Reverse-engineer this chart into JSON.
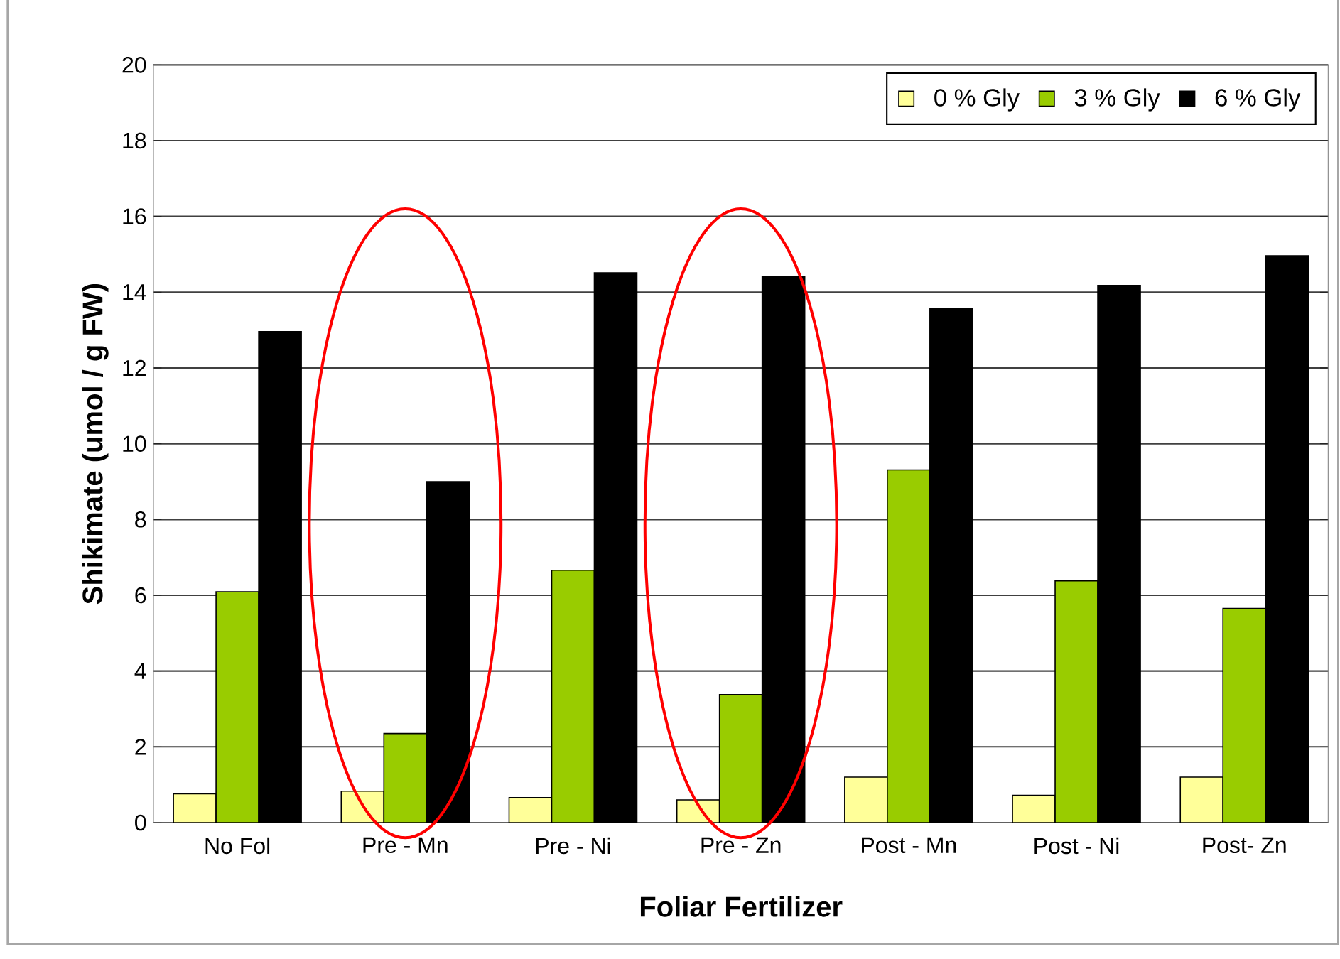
{
  "chart_data": {
    "type": "bar",
    "xlabel": "Foliar Fertilizer",
    "ylabel": "Shikimate (umol / g FW)",
    "categories": [
      "No Fol",
      "Pre - Mn",
      "Pre - Ni",
      "Pre - Zn",
      "Post - Mn",
      "Post - Ni",
      "Post- Zn"
    ],
    "series": [
      {
        "name": "0 % Gly",
        "color": "#ffff99",
        "values": [
          0.76,
          0.83,
          0.66,
          0.6,
          1.2,
          0.72,
          1.2
        ]
      },
      {
        "name": "3 % Gly",
        "color": "#99cc00",
        "values": [
          6.09,
          2.35,
          6.66,
          3.38,
          9.31,
          6.38,
          5.65
        ]
      },
      {
        "name": "6 % Gly",
        "color": "#000000",
        "values": [
          12.96,
          9.0,
          14.51,
          14.41,
          13.56,
          14.18,
          14.96
        ]
      }
    ],
    "ylim": [
      0,
      20
    ],
    "yticks": [
      0,
      2,
      4,
      6,
      8,
      10,
      12,
      14,
      16,
      18,
      20
    ],
    "grid": "y",
    "legend": "top right"
  }
}
